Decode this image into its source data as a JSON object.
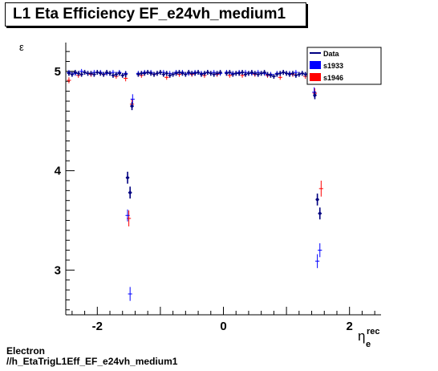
{
  "title": "L1 Eta Efficiency EF_e24vh_medium1",
  "footer": {
    "line1": "Electron",
    "line2": "//h_EtaTrigL1Eff_EF_e24vh_medium1"
  },
  "chart_data": {
    "type": "scatter",
    "title": "L1 Eta Efficiency EF_e24vh_medium1",
    "xlabel": "η_e^rec",
    "ylabel": "ε",
    "xlim": [
      -2.5,
      2.5
    ],
    "ylim": [
      2.55,
      5.29
    ],
    "x_ticks": [
      -2,
      0,
      2
    ],
    "y_ticks": [
      3,
      4,
      5
    ],
    "grid": false,
    "legend_placement": "top-right",
    "series": [
      {
        "name": "Data",
        "color": "#000080",
        "marker": "line",
        "points": [
          [
            -2.45,
            4.98
          ],
          [
            -2.4,
            4.97
          ],
          [
            -2.35,
            4.99
          ],
          [
            -2.3,
            4.98
          ],
          [
            -2.25,
            4.97
          ],
          [
            -2.2,
            4.99
          ],
          [
            -2.15,
            4.98
          ],
          [
            -2.1,
            4.98
          ],
          [
            -2.05,
            4.97
          ],
          [
            -2.0,
            4.99
          ],
          [
            -1.95,
            4.98
          ],
          [
            -1.9,
            4.97
          ],
          [
            -1.85,
            4.99
          ],
          [
            -1.8,
            4.98
          ],
          [
            -1.75,
            4.96
          ],
          [
            -1.7,
            4.97
          ],
          [
            -1.65,
            4.98
          ],
          [
            -1.6,
            4.96
          ],
          [
            -1.55,
            4.97
          ],
          [
            -1.52,
            3.93
          ],
          [
            -1.48,
            3.78
          ],
          [
            -1.45,
            4.65
          ],
          [
            -1.35,
            4.97
          ],
          [
            -1.3,
            4.98
          ],
          [
            -1.25,
            4.98
          ],
          [
            -1.2,
            4.99
          ],
          [
            -1.15,
            4.98
          ],
          [
            -1.1,
            4.97
          ],
          [
            -1.05,
            4.98
          ],
          [
            -1.0,
            4.99
          ],
          [
            -0.95,
            4.97
          ],
          [
            -0.9,
            4.98
          ],
          [
            -0.85,
            4.96
          ],
          [
            -0.8,
            4.97
          ],
          [
            -0.75,
            4.98
          ],
          [
            -0.7,
            4.99
          ],
          [
            -0.65,
            4.98
          ],
          [
            -0.6,
            4.97
          ],
          [
            -0.55,
            4.99
          ],
          [
            -0.5,
            4.98
          ],
          [
            -0.45,
            4.98
          ],
          [
            -0.4,
            4.99
          ],
          [
            -0.35,
            4.97
          ],
          [
            -0.3,
            4.98
          ],
          [
            -0.25,
            4.99
          ],
          [
            -0.2,
            4.98
          ],
          [
            -0.15,
            4.97
          ],
          [
            -0.1,
            4.98
          ],
          [
            -0.05,
            4.99
          ],
          [
            0.05,
            4.98
          ],
          [
            0.1,
            4.99
          ],
          [
            0.15,
            4.97
          ],
          [
            0.2,
            4.98
          ],
          [
            0.25,
            4.98
          ],
          [
            0.3,
            4.99
          ],
          [
            0.35,
            4.97
          ],
          [
            0.4,
            4.98
          ],
          [
            0.45,
            4.99
          ],
          [
            0.5,
            4.98
          ],
          [
            0.55,
            4.97
          ],
          [
            0.6,
            4.98
          ],
          [
            0.65,
            4.99
          ],
          [
            0.7,
            4.97
          ],
          [
            0.75,
            4.96
          ],
          [
            0.8,
            4.95
          ],
          [
            0.85,
            4.97
          ],
          [
            0.9,
            4.98
          ],
          [
            0.95,
            4.99
          ],
          [
            1.0,
            4.98
          ],
          [
            1.05,
            4.97
          ],
          [
            1.1,
            4.98
          ],
          [
            1.15,
            4.96
          ],
          [
            1.2,
            4.97
          ],
          [
            1.25,
            4.98
          ],
          [
            1.3,
            4.97
          ],
          [
            1.35,
            4.96
          ],
          [
            1.4,
            4.97
          ],
          [
            1.45,
            4.76
          ],
          [
            1.49,
            3.71
          ],
          [
            1.53,
            3.57
          ],
          [
            1.6,
            4.96
          ],
          [
            1.65,
            4.97
          ],
          [
            1.7,
            4.98
          ],
          [
            1.75,
            4.96
          ],
          [
            1.8,
            4.97
          ],
          [
            1.85,
            4.98
          ],
          [
            1.9,
            4.96
          ],
          [
            1.95,
            4.97
          ],
          [
            2.0,
            4.98
          ],
          [
            2.05,
            4.96
          ],
          [
            2.1,
            4.97
          ],
          [
            2.15,
            4.98
          ],
          [
            2.2,
            4.96
          ],
          [
            2.25,
            4.97
          ],
          [
            2.3,
            4.98
          ],
          [
            2.35,
            4.96
          ],
          [
            2.4,
            4.97
          ],
          [
            2.45,
            4.93
          ]
        ],
        "errors": [
          0.02,
          0.02,
          0.02,
          0.02,
          0.02,
          0.02,
          0.02,
          0.02,
          0.02,
          0.02,
          0.02,
          0.02,
          0.02,
          0.02,
          0.02,
          0.02,
          0.02,
          0.02,
          0.03,
          0.06,
          0.06,
          0.04,
          0.02,
          0.02,
          0.02,
          0.02,
          0.02,
          0.02,
          0.02,
          0.02,
          0.02,
          0.02,
          0.02,
          0.02,
          0.02,
          0.02,
          0.02,
          0.02,
          0.02,
          0.02,
          0.02,
          0.02,
          0.02,
          0.02,
          0.02,
          0.02,
          0.02,
          0.02,
          0.02,
          0.02,
          0.02,
          0.02,
          0.02,
          0.02,
          0.02,
          0.02,
          0.02,
          0.02,
          0.02,
          0.02,
          0.02,
          0.02,
          0.02,
          0.02,
          0.02,
          0.02,
          0.02,
          0.02,
          0.02,
          0.02,
          0.02,
          0.02,
          0.02,
          0.02,
          0.02,
          0.02,
          0.02,
          0.04,
          0.06,
          0.06,
          0.02,
          0.02,
          0.02,
          0.02,
          0.02,
          0.02,
          0.02,
          0.02,
          0.02,
          0.02,
          0.02,
          0.02,
          0.02,
          0.02,
          0.02,
          0.02,
          0.02,
          0.03
        ]
      },
      {
        "name": "s1933",
        "color": "#0000ff",
        "marker": "line",
        "points": [
          [
            -2.45,
            4.99
          ],
          [
            -2.35,
            4.98
          ],
          [
            -2.25,
            5.0
          ],
          [
            -2.15,
            4.98
          ],
          [
            -2.05,
            4.99
          ],
          [
            -1.95,
            4.99
          ],
          [
            -1.85,
            4.98
          ],
          [
            -1.75,
            4.99
          ],
          [
            -1.65,
            4.99
          ],
          [
            -1.55,
            4.98
          ],
          [
            -1.52,
            3.55
          ],
          [
            -1.48,
            2.76
          ],
          [
            -1.44,
            4.72
          ],
          [
            -1.35,
            4.98
          ],
          [
            -1.25,
            4.99
          ],
          [
            -1.15,
            4.99
          ],
          [
            -1.05,
            4.98
          ],
          [
            -0.95,
            4.99
          ],
          [
            -0.85,
            4.98
          ],
          [
            -0.75,
            4.99
          ],
          [
            -0.65,
            4.99
          ],
          [
            -0.55,
            4.98
          ],
          [
            -0.45,
            4.99
          ],
          [
            -0.35,
            4.98
          ],
          [
            -0.25,
            4.99
          ],
          [
            -0.15,
            4.99
          ],
          [
            -0.05,
            4.98
          ],
          [
            0.05,
            4.99
          ],
          [
            0.15,
            4.98
          ],
          [
            0.25,
            4.99
          ],
          [
            0.35,
            4.99
          ],
          [
            0.45,
            4.98
          ],
          [
            0.55,
            4.99
          ],
          [
            0.65,
            4.98
          ],
          [
            0.75,
            4.97
          ],
          [
            0.85,
            4.98
          ],
          [
            0.95,
            4.99
          ],
          [
            1.05,
            4.98
          ],
          [
            1.15,
            4.99
          ],
          [
            1.25,
            4.98
          ],
          [
            1.35,
            4.98
          ],
          [
            1.44,
            4.79
          ],
          [
            1.49,
            3.09
          ],
          [
            1.53,
            3.2
          ],
          [
            1.6,
            4.98
          ],
          [
            1.7,
            4.98
          ],
          [
            1.8,
            4.99
          ],
          [
            1.9,
            4.98
          ],
          [
            2.0,
            4.99
          ],
          [
            2.1,
            4.98
          ],
          [
            2.2,
            4.99
          ],
          [
            2.3,
            4.98
          ],
          [
            2.4,
            4.99
          ],
          [
            2.47,
            5.0
          ]
        ],
        "errors": [
          0.02,
          0.02,
          0.02,
          0.02,
          0.02,
          0.02,
          0.02,
          0.02,
          0.02,
          0.02,
          0.06,
          0.07,
          0.05,
          0.02,
          0.02,
          0.02,
          0.02,
          0.02,
          0.02,
          0.02,
          0.02,
          0.02,
          0.02,
          0.02,
          0.02,
          0.02,
          0.02,
          0.02,
          0.02,
          0.02,
          0.02,
          0.02,
          0.02,
          0.02,
          0.02,
          0.02,
          0.02,
          0.02,
          0.02,
          0.02,
          0.02,
          0.05,
          0.07,
          0.07,
          0.02,
          0.02,
          0.02,
          0.02,
          0.02,
          0.02,
          0.02,
          0.02,
          0.02,
          0.02
        ]
      },
      {
        "name": "s1946",
        "color": "#ff0000",
        "marker": "line",
        "points": [
          [
            -2.45,
            4.91
          ],
          [
            -2.3,
            4.96
          ],
          [
            -2.1,
            4.97
          ],
          [
            -1.9,
            4.97
          ],
          [
            -1.7,
            4.95
          ],
          [
            -1.55,
            4.93
          ],
          [
            -1.5,
            3.52
          ],
          [
            -1.45,
            4.67
          ],
          [
            -1.3,
            4.96
          ],
          [
            -1.1,
            4.97
          ],
          [
            -0.9,
            4.94
          ],
          [
            -0.7,
            4.97
          ],
          [
            -0.5,
            4.97
          ],
          [
            -0.3,
            4.96
          ],
          [
            -0.1,
            4.97
          ],
          [
            0.1,
            4.96
          ],
          [
            0.3,
            4.96
          ],
          [
            0.5,
            4.97
          ],
          [
            0.7,
            4.96
          ],
          [
            0.9,
            4.94
          ],
          [
            1.1,
            4.97
          ],
          [
            1.3,
            4.95
          ],
          [
            1.45,
            4.78
          ],
          [
            1.55,
            3.82
          ],
          [
            1.7,
            4.95
          ],
          [
            1.9,
            4.96
          ],
          [
            2.1,
            4.97
          ],
          [
            2.3,
            4.96
          ],
          [
            2.45,
            4.94
          ]
        ],
        "errors": [
          0.03,
          0.02,
          0.02,
          0.02,
          0.02,
          0.03,
          0.08,
          0.05,
          0.02,
          0.02,
          0.02,
          0.02,
          0.02,
          0.02,
          0.02,
          0.02,
          0.02,
          0.02,
          0.02,
          0.02,
          0.02,
          0.02,
          0.05,
          0.08,
          0.02,
          0.02,
          0.02,
          0.02,
          0.03
        ]
      }
    ]
  }
}
